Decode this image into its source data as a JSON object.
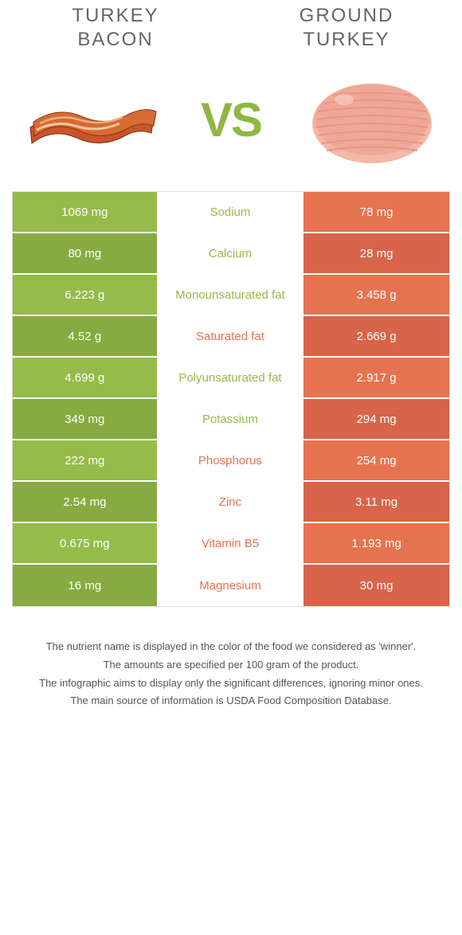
{
  "colors": {
    "left": "#95bb4a",
    "right": "#e6734f",
    "left_dark": "#87ab40",
    "right_dark": "#d8644a"
  },
  "header": {
    "left_title": "TURKEY\nBACON",
    "right_title": "GROUND\nTURKEY",
    "vs": "VS"
  },
  "rows": [
    {
      "left": "1069 mg",
      "label": "Sodium",
      "right": "78 mg",
      "winner": "left"
    },
    {
      "left": "80 mg",
      "label": "Calcium",
      "right": "28 mg",
      "winner": "left"
    },
    {
      "left": "6.223 g",
      "label": "Monounsaturated fat",
      "right": "3.458 g",
      "winner": "left"
    },
    {
      "left": "4.52 g",
      "label": "Saturated fat",
      "right": "2.669 g",
      "winner": "right"
    },
    {
      "left": "4.699 g",
      "label": "Polyunsaturated fat",
      "right": "2.917 g",
      "winner": "left"
    },
    {
      "left": "349 mg",
      "label": "Potassium",
      "right": "294 mg",
      "winner": "left"
    },
    {
      "left": "222 mg",
      "label": "Phosphorus",
      "right": "254 mg",
      "winner": "right"
    },
    {
      "left": "2.54 mg",
      "label": "Zinc",
      "right": "3.11 mg",
      "winner": "right"
    },
    {
      "left": "0.675 mg",
      "label": "Vitamin B5",
      "right": "1.193 mg",
      "winner": "right"
    },
    {
      "left": "16 mg",
      "label": "Magnesium",
      "right": "30 mg",
      "winner": "right"
    }
  ],
  "footer": {
    "line1": "The nutrient name is displayed in the color of the food we considered as 'winner'.",
    "line2": "The amounts are specified per 100 gram of the product.",
    "line3": "The infographic aims to display only the significant differences, ignoring minor ones.",
    "line4": "The main source of information is USDA Food Composition Database."
  }
}
